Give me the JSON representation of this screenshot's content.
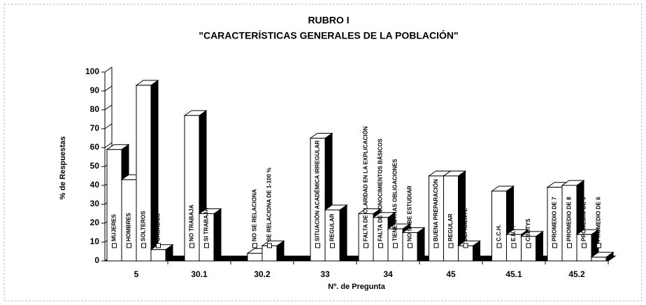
{
  "chart_data": {
    "type": "bar3d",
    "title": "RUBRO I",
    "subtitle": "\"CARACTERÍSTICAS GENERALES DE LA POBLACIÓN\"",
    "ylabel": "% de Respuestas",
    "xlabel": "Nº. de Pregunta",
    "ylim": [
      0,
      100
    ],
    "yticks": [
      0,
      10,
      20,
      30,
      40,
      50,
      60,
      70,
      80,
      90,
      100
    ],
    "color": "#ffffff",
    "side_color": "#000000",
    "groups": [
      {
        "category": "5",
        "bars": [
          {
            "label": "MUJERES",
            "value": 59
          },
          {
            "label": "HOMBRES",
            "value": 43
          },
          {
            "label": "SOLTEROS",
            "value": 93
          },
          {
            "label": "CASADOS",
            "value": 6
          }
        ]
      },
      {
        "category": "30.1",
        "bars": [
          {
            "label": "NO TRABAJA",
            "value": 77
          },
          {
            "label": "SI TRABAJA",
            "value": 25
          }
        ]
      },
      {
        "category": "30.2",
        "bars": [
          {
            "label": "NO SE RELACIONA",
            "value": 4
          },
          {
            "label": "SE RELACIONA DE 1-100 %",
            "value": 8
          }
        ]
      },
      {
        "category": "33",
        "bars": [
          {
            "label": "SITUACIÓN ACADÉMICA IRREGULAR",
            "value": 65
          },
          {
            "label": "REGULAR",
            "value": 27
          }
        ]
      },
      {
        "category": "34",
        "bars": [
          {
            "label": "FALTA DE CLARIDAD EN LA EXPLICACIÓN",
            "value": 25
          },
          {
            "label": "FALTA DE CONOCIMIENTOS BÁSICOS",
            "value": 23
          },
          {
            "label": "TIENE OTRAS OBLIGACIONES",
            "value": 17
          },
          {
            "label": "NO SABE ESTUDIAR",
            "value": 15
          }
        ]
      },
      {
        "category": "45",
        "bars": [
          {
            "label": "BUENA PREPARACIÓN",
            "value": 45
          },
          {
            "label": "REGULAR",
            "value": 45
          },
          {
            "label": "DEFICIENTE",
            "value": 8
          }
        ]
      },
      {
        "category": "45.1",
        "bars": [
          {
            "label": "C.C.H.",
            "value": 37
          },
          {
            "label": "E.N.P.",
            "value": 14
          },
          {
            "label": "CBETYS",
            "value": 13
          }
        ]
      },
      {
        "category": "45.2",
        "bars": [
          {
            "label": "PROMEDIO DE 7",
            "value": 39
          },
          {
            "label": "PROMEDIO DE 8",
            "value": 40
          },
          {
            "label": "PROMEDIO DE 9",
            "value": 14
          },
          {
            "label": "PROMEDIO DE 6",
            "value": 2
          }
        ]
      }
    ]
  }
}
